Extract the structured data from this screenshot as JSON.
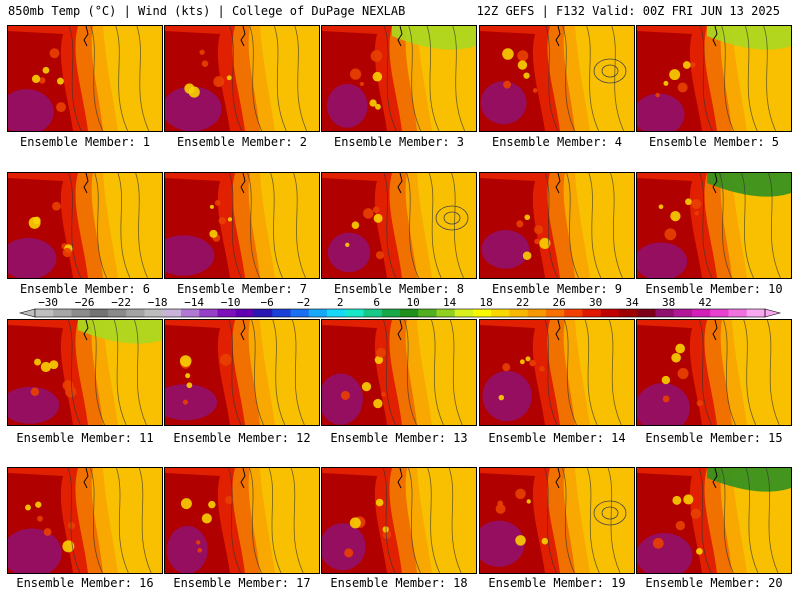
{
  "header": {
    "left": "850mb Temp (°C) | Wind (kts) | College of DuPage NEXLAB",
    "right": "12Z GEFS | F132 Valid: 00Z FRI JUN 13 2025"
  },
  "member_prefix": "Ensemble Member: ",
  "members": [
    {
      "label": "Ensemble Member: 1"
    },
    {
      "label": "Ensemble Member: 2"
    },
    {
      "label": "Ensemble Member: 3"
    },
    {
      "label": "Ensemble Member: 4"
    },
    {
      "label": "Ensemble Member: 5"
    },
    {
      "label": "Ensemble Member: 6"
    },
    {
      "label": "Ensemble Member: 7"
    },
    {
      "label": "Ensemble Member: 8"
    },
    {
      "label": "Ensemble Member: 9"
    },
    {
      "label": "Ensemble Member: 10"
    },
    {
      "label": "Ensemble Member: 11"
    },
    {
      "label": "Ensemble Member: 12"
    },
    {
      "label": "Ensemble Member: 13"
    },
    {
      "label": "Ensemble Member: 14"
    },
    {
      "label": "Ensemble Member: 15"
    },
    {
      "label": "Ensemble Member: 16"
    },
    {
      "label": "Ensemble Member: 17"
    },
    {
      "label": "Ensemble Member: 18"
    },
    {
      "label": "Ensemble Member: 19"
    },
    {
      "label": "Ensemble Member: 20"
    }
  ],
  "colorbar": {
    "tick_labels": [
      "−30",
      "−26",
      "−22",
      "−18",
      "−14",
      "−10",
      "−6",
      "−2",
      "2",
      "6",
      "10",
      "14",
      "18",
      "22",
      "26",
      "30",
      "34",
      "38",
      "42"
    ],
    "colors": [
      "#bfbfbf",
      "#a6a6a6",
      "#8c8c8c",
      "#737373",
      "#8a8a8a",
      "#a3a3a3",
      "#bcbcbc",
      "#c9b3d9",
      "#b07ad4",
      "#9440c8",
      "#7d10b8",
      "#6000b0",
      "#2a16b0",
      "#1a40d8",
      "#1a70f0",
      "#18a8f8",
      "#18d8f8",
      "#18e8c8",
      "#18c888",
      "#18a848",
      "#20901c",
      "#50b020",
      "#90d020",
      "#d8f020",
      "#f8f800",
      "#f8d800",
      "#f8b800",
      "#f89800",
      "#f87000",
      "#f04000",
      "#e01800",
      "#c00000",
      "#9c0000",
      "#7c0018",
      "#901070",
      "#b01898",
      "#d020b8",
      "#e840d0",
      "#f070e0",
      "#f8a8f0"
    ]
  }
}
